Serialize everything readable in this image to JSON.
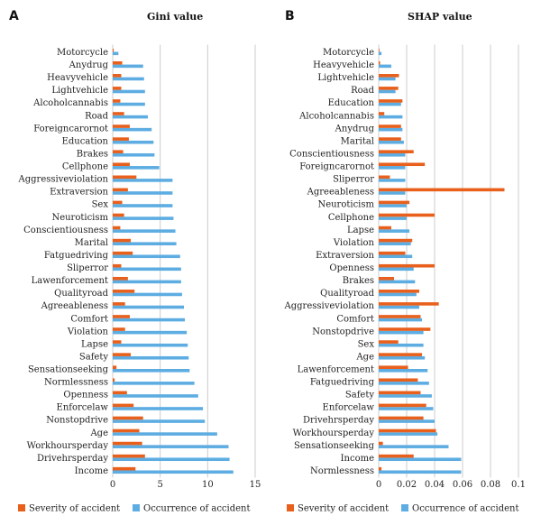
{
  "colors": {
    "severity": "#E8601C",
    "occurrence": "#5DADE2",
    "grid": "#CCCCCC"
  },
  "chart_data": [
    {
      "type": "bar",
      "orientation": "horizontal",
      "panel_label": "A",
      "title": "Gini value",
      "xlim": [
        0,
        15
      ],
      "xticks": [
        "0",
        "5",
        "10",
        "15"
      ],
      "grid": true,
      "legend_position": "bottom",
      "categories": [
        "Motorcycle",
        "Anydrug",
        "Heavyvehicle",
        "Lightvehicle",
        "Alcoholcannabis",
        "Road",
        "Foreigncarornot",
        "Education",
        "Brakes",
        "Cellphone",
        "Aggressiveviolation",
        "Extraversion",
        "Sex",
        "Neuroticism",
        "Conscientiousness",
        "Marital",
        "Fatguedriving",
        "Sliperror",
        "Lawenforcement",
        "Qualityroad",
        "Agreeableness",
        "Comfort",
        "Violation",
        "Lapse",
        "Safety",
        "Sensationseeking",
        "Normlessness",
        "Openness",
        "Enforcelaw",
        "Nonstopdrive",
        "Age",
        "Workhoursperday",
        "Drivehrsperday",
        "Income"
      ],
      "series": [
        {
          "name": "Severity of accident",
          "values": [
            0.1,
            1.0,
            0.9,
            0.9,
            0.8,
            1.2,
            1.8,
            1.7,
            1.1,
            1.8,
            2.5,
            1.6,
            1.0,
            1.2,
            0.8,
            1.9,
            2.1,
            0.9,
            1.6,
            2.3,
            1.3,
            1.8,
            1.3,
            0.9,
            1.9,
            0.4,
            0.2,
            1.5,
            2.2,
            3.2,
            2.8,
            3.1,
            3.4,
            2.4
          ]
        },
        {
          "name": "Occurrence of accident",
          "values": [
            0.6,
            3.2,
            3.3,
            3.4,
            3.4,
            3.7,
            4.1,
            4.3,
            4.4,
            4.9,
            6.3,
            6.3,
            6.3,
            6.4,
            6.6,
            6.7,
            7.1,
            7.2,
            7.2,
            7.3,
            7.5,
            7.6,
            7.8,
            7.9,
            8.0,
            8.1,
            8.6,
            9.0,
            9.5,
            9.7,
            11.0,
            12.2,
            12.3,
            12.7
          ]
        }
      ]
    },
    {
      "type": "bar",
      "orientation": "horizontal",
      "panel_label": "B",
      "title": "SHAP value",
      "xlim": [
        0,
        0.1
      ],
      "xticks": [
        "0",
        "0.02",
        "0.04",
        "0.06",
        "0.08",
        "0.1"
      ],
      "grid": true,
      "legend_position": "bottom",
      "categories": [
        "Motorcycle",
        "Heavyvehicle",
        "Lightvehicle",
        "Road",
        "Education",
        "Alcoholcannabis",
        "Anydrug",
        "Marital",
        "Conscientiousness",
        "Foreigncarornot",
        "Sliperror",
        "Agreeableness",
        "Neuroticism",
        "Cellphone",
        "Lapse",
        "Violation",
        "Extraversion",
        "Openness",
        "Brakes",
        "Qualityroad",
        "Aggressiveviolation",
        "Comfort",
        "Nonstopdrive",
        "Sex",
        "Age",
        "Lawenforcement",
        "Fatguedriving",
        "Safety",
        "Enforcelaw",
        "Drivehrsperday",
        "Workhoursperday",
        "Sensationseeking",
        "Income",
        "Normlessness"
      ],
      "series": [
        {
          "name": "Severity of accident",
          "values": [
            0.0005,
            0.001,
            0.0145,
            0.014,
            0.017,
            0.004,
            0.016,
            0.016,
            0.025,
            0.033,
            0.008,
            0.09,
            0.022,
            0.04,
            0.009,
            0.024,
            0.019,
            0.04,
            0.011,
            0.029,
            0.043,
            0.03,
            0.037,
            0.014,
            0.031,
            0.021,
            0.028,
            0.03,
            0.034,
            0.032,
            0.041,
            0.003,
            0.025,
            0.002
          ]
        },
        {
          "name": "Occurrence of accident",
          "values": [
            0.002,
            0.009,
            0.012,
            0.012,
            0.016,
            0.017,
            0.017,
            0.018,
            0.019,
            0.019,
            0.019,
            0.019,
            0.02,
            0.02,
            0.022,
            0.023,
            0.024,
            0.025,
            0.026,
            0.027,
            0.029,
            0.031,
            0.032,
            0.032,
            0.033,
            0.035,
            0.036,
            0.038,
            0.039,
            0.04,
            0.042,
            0.05,
            0.059,
            0.059
          ]
        }
      ]
    }
  ]
}
